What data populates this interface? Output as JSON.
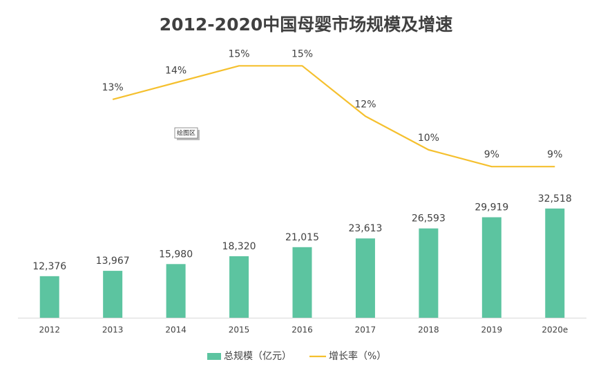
{
  "chart_data": {
    "type": "combo",
    "title": "2012-2020中国母婴市场规模及增速",
    "categories": [
      "2012",
      "2013",
      "2014",
      "2015",
      "2016",
      "2017",
      "2018",
      "2019",
      "2020e"
    ],
    "series": [
      {
        "name": "总规模（亿元）",
        "type": "bar",
        "color": "#5cc4a0",
        "values": [
          12376,
          13967,
          15980,
          18320,
          21015,
          23613,
          26593,
          29919,
          32518
        ],
        "value_labels": [
          "12,376",
          "13,967",
          "15,980",
          "18,320",
          "21,015",
          "23,613",
          "26,593",
          "29,919",
          "32,518"
        ]
      },
      {
        "name": "增长率（%）",
        "type": "line",
        "axis": "y2",
        "color": "#f5c02e",
        "values": [
          null,
          13,
          14,
          15,
          15,
          12,
          10,
          9,
          9
        ],
        "value_labels": [
          null,
          "13%",
          "14%",
          "15%",
          "15%",
          "12%",
          "10%",
          "9%",
          "9%"
        ]
      }
    ],
    "ylim": [
      0,
      80000
    ],
    "y2lim": [
      0,
      16
    ],
    "legend": "bottom",
    "tooltip": "绘图区"
  }
}
